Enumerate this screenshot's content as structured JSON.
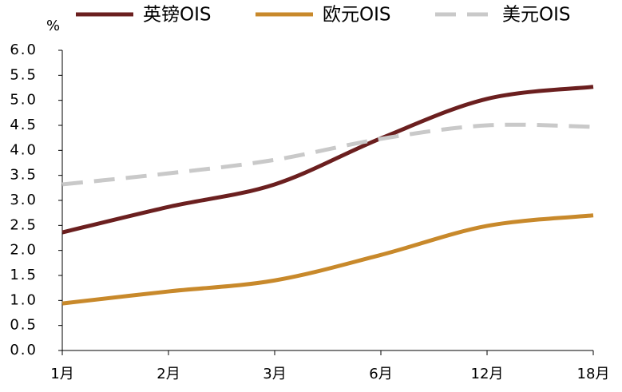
{
  "chart_data": {
    "type": "line",
    "y_unit": "%",
    "categories": [
      "1月",
      "2月",
      "3月",
      "6月",
      "12月",
      "18月"
    ],
    "series": [
      {
        "name": "英镑OIS",
        "color": "#6b1f1f",
        "linestyle": "solid",
        "values": [
          2.36,
          2.87,
          3.32,
          4.24,
          5.03,
          5.27
        ]
      },
      {
        "name": "欧元OIS",
        "color": "#c8892b",
        "linestyle": "solid",
        "values": [
          0.94,
          1.18,
          1.4,
          1.91,
          2.49,
          2.7
        ]
      },
      {
        "name": "美元OIS",
        "color": "#c9c9c9",
        "linestyle": "dashed",
        "values": [
          3.32,
          3.54,
          3.81,
          4.23,
          4.5,
          4.47
        ]
      }
    ],
    "ylim": [
      0,
      6
    ],
    "yticks": [
      {
        "value": 0,
        "label": "0.0"
      },
      0.5,
      {
        "value": 1,
        "label": "1.0"
      },
      1.5,
      {
        "value": 2,
        "label": "2.0"
      },
      2.5,
      {
        "value": 3,
        "label": "3.0"
      },
      3.5,
      {
        "value": 4,
        "label": "4.0"
      },
      4.5,
      {
        "value": 5,
        "label": "5.0"
      },
      5.5,
      {
        "value": 6,
        "label": "6.0"
      }
    ],
    "legend": "top"
  }
}
